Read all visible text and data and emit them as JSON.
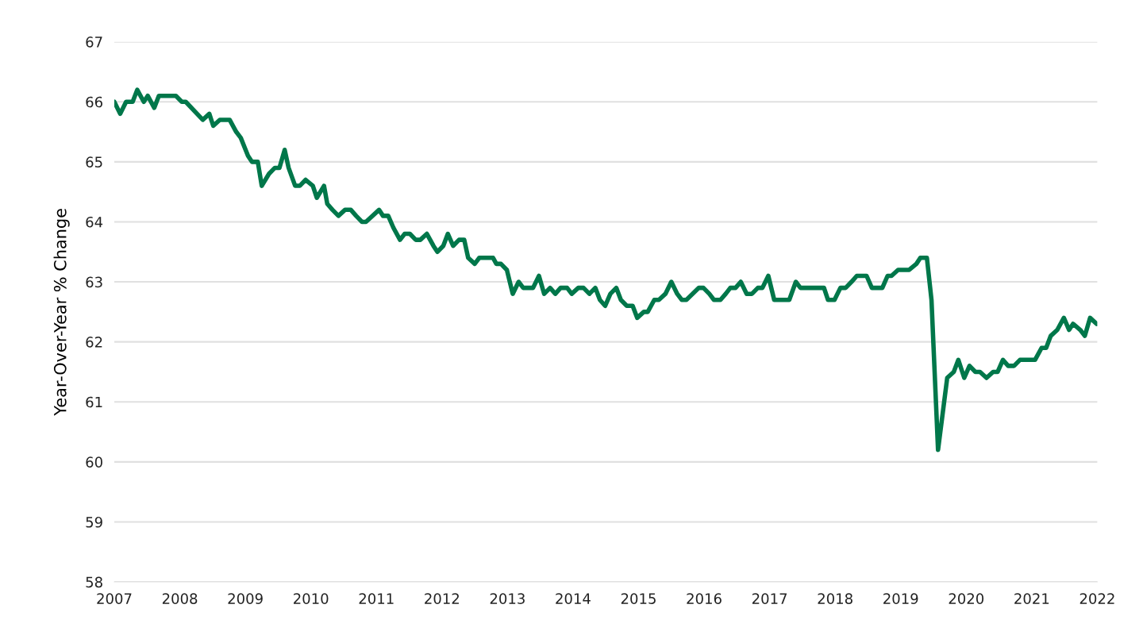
{
  "chart_data": {
    "type": "line",
    "ylabel": "Year-Over-Year % Change",
    "xlim": [
      2007,
      2022
    ],
    "xticks": [
      2007,
      2008,
      2009,
      2010,
      2011,
      2012,
      2013,
      2014,
      2015,
      2016,
      2017,
      2018,
      2019,
      2020,
      2021,
      2022
    ],
    "ylim": [
      58,
      67
    ],
    "yticks": [
      58,
      59,
      60,
      61,
      62,
      63,
      64,
      65,
      66,
      67
    ],
    "grid": "y",
    "legend": false,
    "marker": "none",
    "line_style": "solid",
    "series": [
      {
        "color": "#00774a",
        "x": [
          2007.0,
          2007.09,
          2007.18,
          2007.28,
          2007.35,
          2007.45,
          2007.51,
          2007.61,
          2007.68,
          2007.94,
          2008.03,
          2008.09,
          2008.35,
          2008.45,
          2008.51,
          2008.61,
          2008.76,
          2008.86,
          2008.93,
          2009.04,
          2009.1,
          2009.19,
          2009.25,
          2009.36,
          2009.45,
          2009.52,
          2009.6,
          2009.66,
          2009.76,
          2009.83,
          2009.92,
          2010.03,
          2010.09,
          2010.2,
          2010.25,
          2010.33,
          2010.42,
          2010.52,
          2010.61,
          2010.69,
          2010.78,
          2010.84,
          2011.04,
          2011.1,
          2011.18,
          2011.26,
          2011.36,
          2011.43,
          2011.51,
          2011.6,
          2011.67,
          2011.77,
          2011.87,
          2011.93,
          2012.02,
          2012.09,
          2012.17,
          2012.26,
          2012.34,
          2012.4,
          2012.5,
          2012.57,
          2012.78,
          2012.83,
          2012.9,
          2012.99,
          2013.08,
          2013.17,
          2013.24,
          2013.39,
          2013.48,
          2013.56,
          2013.65,
          2013.73,
          2013.81,
          2013.91,
          2013.98,
          2014.08,
          2014.16,
          2014.25,
          2014.34,
          2014.41,
          2014.49,
          2014.57,
          2014.66,
          2014.73,
          2014.82,
          2014.91,
          2014.98,
          2015.08,
          2015.14,
          2015.24,
          2015.31,
          2015.41,
          2015.5,
          2015.59,
          2015.66,
          2015.73,
          2015.92,
          2015.99,
          2016.08,
          2016.15,
          2016.25,
          2016.33,
          2016.4,
          2016.48,
          2016.56,
          2016.65,
          2016.73,
          2016.82,
          2016.89,
          2016.98,
          2017.07,
          2017.3,
          2017.4,
          2017.47,
          2017.83,
          2017.89,
          2017.99,
          2018.08,
          2018.16,
          2018.25,
          2018.33,
          2018.48,
          2018.56,
          2018.72,
          2018.8,
          2018.86,
          2018.96,
          2019.13,
          2019.24,
          2019.3,
          2019.4,
          2019.47,
          2019.57,
          2019.64,
          2019.71,
          2019.81,
          2019.88,
          2019.97,
          2020.05,
          2020.14,
          2020.21,
          2020.31,
          2020.41,
          2020.48,
          2020.56,
          2020.64,
          2020.73,
          2020.82,
          2021.05,
          2021.15,
          2021.22,
          2021.29,
          2021.39,
          2021.49,
          2021.57,
          2021.63,
          2021.74,
          2021.81,
          2021.89,
          2021.99
        ],
        "values": [
          66.0,
          65.8,
          66.0,
          66.0,
          66.2,
          66.0,
          66.1,
          65.9,
          66.1,
          66.1,
          66.0,
          66.0,
          65.7,
          65.8,
          65.6,
          65.7,
          65.7,
          65.5,
          65.4,
          65.1,
          65.0,
          65.0,
          64.6,
          64.8,
          64.9,
          64.9,
          65.2,
          64.9,
          64.6,
          64.6,
          64.7,
          64.6,
          64.4,
          64.6,
          64.3,
          64.2,
          64.1,
          64.2,
          64.2,
          64.1,
          64.0,
          64.0,
          64.2,
          64.1,
          64.1,
          63.9,
          63.7,
          63.8,
          63.8,
          63.7,
          63.7,
          63.8,
          63.6,
          63.5,
          63.6,
          63.8,
          63.6,
          63.7,
          63.7,
          63.4,
          63.3,
          63.4,
          63.4,
          63.3,
          63.3,
          63.2,
          62.8,
          63.0,
          62.9,
          62.9,
          63.1,
          62.8,
          62.9,
          62.8,
          62.9,
          62.9,
          62.8,
          62.9,
          62.9,
          62.8,
          62.9,
          62.7,
          62.6,
          62.8,
          62.9,
          62.7,
          62.6,
          62.6,
          62.4,
          62.5,
          62.5,
          62.7,
          62.7,
          62.8,
          63.0,
          62.8,
          62.7,
          62.7,
          62.9,
          62.9,
          62.8,
          62.7,
          62.7,
          62.8,
          62.9,
          62.9,
          63.0,
          62.8,
          62.8,
          62.9,
          62.9,
          63.1,
          62.7,
          62.7,
          63.0,
          62.9,
          62.9,
          62.7,
          62.7,
          62.9,
          62.9,
          63.0,
          63.1,
          63.1,
          62.9,
          62.9,
          63.1,
          63.1,
          63.2,
          63.2,
          63.3,
          63.4,
          63.4,
          62.7,
          60.2,
          60.8,
          61.4,
          61.5,
          61.7,
          61.4,
          61.6,
          61.5,
          61.5,
          61.4,
          61.5,
          61.5,
          61.7,
          61.6,
          61.6,
          61.7,
          61.7,
          61.9,
          61.9,
          62.1,
          62.2,
          62.4,
          62.2,
          62.3,
          62.2,
          62.1,
          62.4,
          62.3
        ]
      }
    ]
  }
}
